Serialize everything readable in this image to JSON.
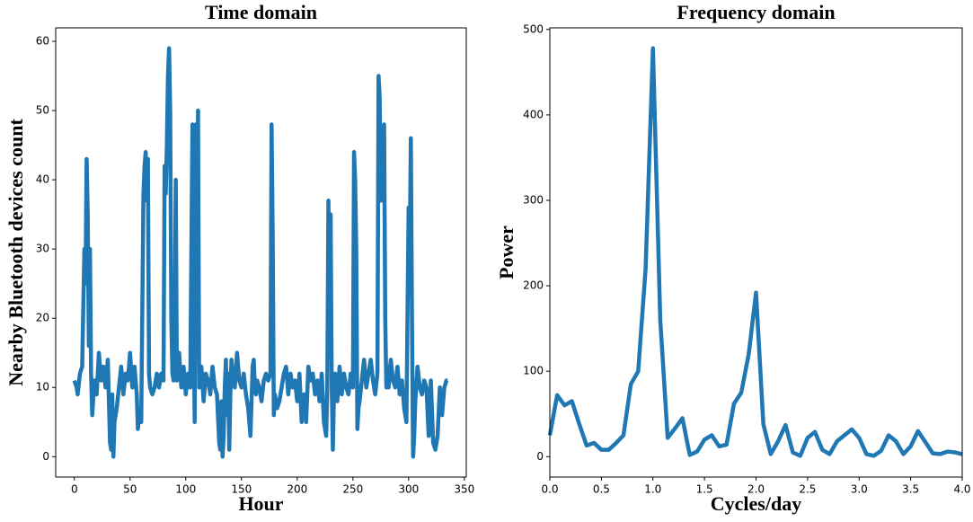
{
  "chart_data": [
    {
      "type": "line",
      "title": "Time domain",
      "x_label": "Hour",
      "y_label": "Nearby Bluetooth devices count",
      "xlim": [
        -16.75,
        351.75
      ],
      "ylim": [
        -2.95,
        61.95
      ],
      "xticks": [
        0,
        50,
        100,
        150,
        200,
        250,
        300,
        350
      ],
      "yticks": [
        0,
        10,
        20,
        30,
        40,
        50,
        60
      ],
      "series": [
        {
          "color": "#1f77b4",
          "x": [
            0,
            2,
            3,
            5,
            7,
            9,
            10,
            11,
            12,
            13,
            14,
            15,
            16,
            18,
            20,
            22,
            24,
            26,
            28,
            30,
            32,
            33,
            34,
            35,
            36,
            38,
            40,
            42,
            44,
            46,
            48,
            50,
            52,
            54,
            56,
            57,
            58,
            60,
            62,
            63,
            64,
            65,
            66,
            67,
            68,
            70,
            72,
            74,
            76,
            78,
            80,
            81,
            82,
            83,
            84,
            85,
            86,
            87,
            88,
            89,
            90,
            91,
            92,
            94,
            96,
            98,
            100,
            102,
            104,
            105,
            106,
            107,
            108,
            109,
            110,
            111,
            112,
            114,
            116,
            118,
            120,
            122,
            124,
            126,
            128,
            130,
            131,
            132,
            133,
            134,
            135,
            136,
            137,
            138,
            139,
            140,
            141,
            142,
            144,
            146,
            148,
            150,
            152,
            154,
            156,
            158,
            160,
            161,
            162,
            163,
            164,
            166,
            168,
            170,
            172,
            174,
            176,
            177,
            178,
            179,
            180,
            182,
            184,
            186,
            188,
            190,
            192,
            194,
            196,
            198,
            200,
            202,
            204,
            206,
            208,
            210,
            212,
            214,
            216,
            218,
            220,
            222,
            224,
            226,
            227,
            228,
            229,
            230,
            231,
            232,
            233,
            234,
            235,
            236,
            238,
            240,
            242,
            244,
            246,
            248,
            250,
            251,
            252,
            253,
            254,
            255,
            256,
            258,
            260,
            262,
            264,
            266,
            268,
            270,
            272,
            273,
            274,
            275,
            276,
            277,
            278,
            279,
            280,
            281,
            282,
            284,
            286,
            288,
            290,
            292,
            294,
            296,
            298,
            300,
            301,
            302,
            303,
            304,
            305,
            306,
            308,
            310,
            312,
            314,
            316,
            318,
            320,
            322,
            324,
            326,
            328,
            330,
            332,
            334,
            335
          ],
          "values": [
            11,
            10,
            9,
            12,
            13,
            30,
            25,
            43,
            35,
            16,
            30,
            12,
            6,
            11,
            9,
            15,
            11,
            13,
            10,
            14,
            2,
            1,
            9,
            0,
            5,
            7,
            10,
            13,
            9,
            12,
            11,
            15,
            10,
            13,
            9,
            4,
            6,
            5,
            38,
            42,
            44,
            37,
            43,
            12,
            10,
            9,
            10,
            12,
            10,
            12,
            11,
            42,
            38,
            45,
            55,
            59,
            50,
            20,
            12,
            11,
            15,
            40,
            11,
            15,
            10,
            13,
            9,
            12,
            10,
            30,
            48,
            20,
            5,
            48,
            20,
            50,
            10,
            13,
            8,
            12,
            11,
            9,
            13,
            10,
            9,
            2,
            1,
            8,
            0,
            3,
            10,
            14,
            6,
            12,
            1,
            9,
            14,
            12,
            10,
            15,
            11,
            10,
            12,
            9,
            7,
            3,
            13,
            14,
            10,
            9,
            11,
            10,
            8,
            11,
            12,
            11,
            12,
            48,
            32,
            6,
            9,
            7,
            8,
            10,
            12,
            13,
            9,
            12,
            10,
            11,
            8,
            12,
            5,
            9,
            5,
            13,
            11,
            12,
            9,
            11,
            8,
            12,
            5,
            3,
            10,
            37,
            20,
            35,
            10,
            1,
            9,
            12,
            10,
            8,
            13,
            9,
            12,
            10,
            9,
            12,
            10,
            44,
            40,
            30,
            4,
            7,
            8,
            11,
            14,
            10,
            12,
            14,
            11,
            9,
            12,
            55,
            52,
            37,
            45,
            37,
            48,
            20,
            10,
            13,
            10,
            14,
            11,
            10,
            13,
            9,
            11,
            7,
            5,
            36,
            30,
            46,
            20,
            0,
            3,
            8,
            13,
            10,
            9,
            11,
            10,
            3,
            11,
            2,
            1,
            3,
            10,
            6,
            10,
            11,
            11
          ]
        }
      ]
    },
    {
      "type": "line",
      "title": "Frequency domain",
      "x_label": "Cycles/day",
      "y_label": "Power",
      "xlim": [
        0,
        4
      ],
      "ylim": [
        -23.9,
        501.9
      ],
      "xticks": [
        {
          "value": 0,
          "label": "0.0"
        },
        0.5,
        {
          "value": 1,
          "label": "1.0"
        },
        1.5,
        {
          "value": 2,
          "label": "2.0"
        },
        2.5,
        {
          "value": 3,
          "label": "3.0"
        },
        3.5,
        {
          "value": 4,
          "label": "4.0"
        }
      ],
      "yticks": [
        0,
        100,
        200,
        300,
        400,
        500
      ],
      "series": [
        {
          "color": "#1f77b4",
          "x": [
            0,
            0.071,
            0.143,
            0.214,
            0.286,
            0.357,
            0.429,
            0.5,
            0.571,
            0.643,
            0.714,
            0.786,
            0.857,
            0.929,
            1,
            1.071,
            1.143,
            1.214,
            1.286,
            1.357,
            1.429,
            1.5,
            1.571,
            1.643,
            1.714,
            1.786,
            1.857,
            1.929,
            2,
            2.071,
            2.143,
            2.214,
            2.286,
            2.357,
            2.429,
            2.5,
            2.571,
            2.643,
            2.714,
            2.786,
            2.857,
            2.929,
            3,
            3.071,
            3.143,
            3.214,
            3.286,
            3.357,
            3.429,
            3.5,
            3.571,
            3.643,
            3.714,
            3.786,
            3.857,
            3.929,
            4
          ],
          "values": [
            25,
            72,
            60,
            65,
            38,
            13,
            16,
            8,
            8,
            16,
            25,
            85,
            100,
            220,
            478,
            160,
            22,
            33,
            45,
            2,
            6,
            20,
            25,
            12,
            14,
            62,
            75,
            120,
            192,
            38,
            3,
            18,
            37,
            5,
            1,
            22,
            29,
            8,
            3,
            18,
            25,
            32,
            22,
            3,
            1,
            7,
            25,
            18,
            3,
            12,
            30,
            17,
            4,
            3,
            6,
            5,
            3
          ]
        }
      ]
    }
  ]
}
